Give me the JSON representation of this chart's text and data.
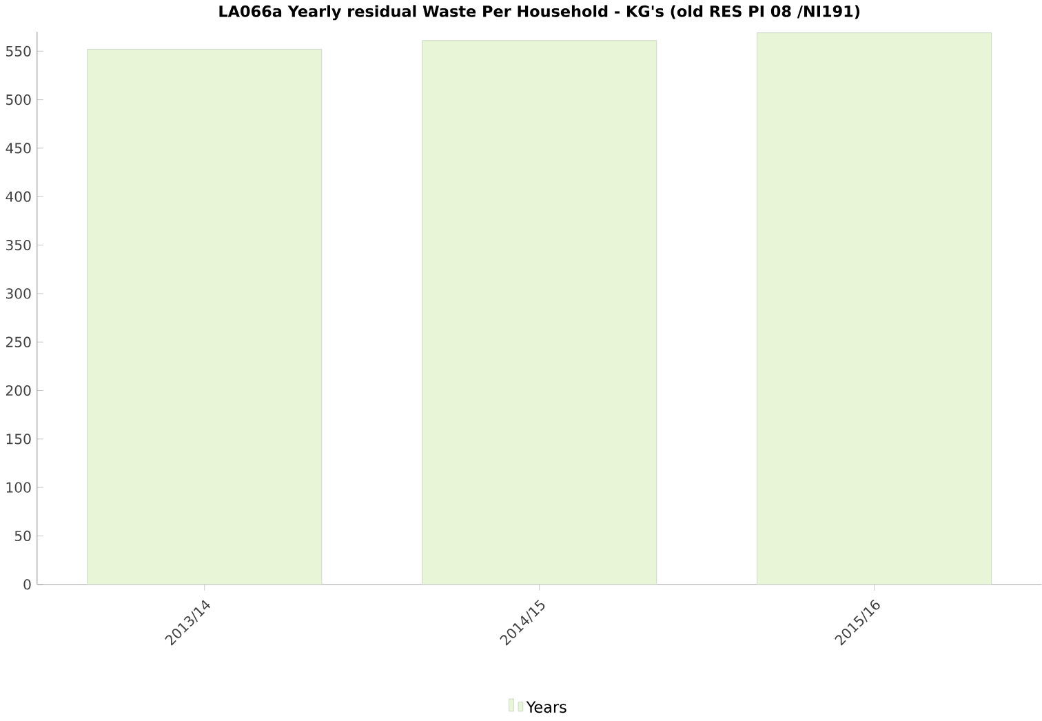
{
  "chart_data": {
    "type": "bar",
    "title": "LA066a Yearly residual Waste Per Household - KG's (old RES PI 08 /NI191)",
    "categories": [
      "2013/14",
      "2014/15",
      "2015/16"
    ],
    "series": [
      {
        "name": "Years",
        "color": "#e8f5d6",
        "values": [
          552,
          561,
          569
        ]
      }
    ],
    "ylim": [
      0,
      570
    ],
    "yticks": [
      0,
      50,
      100,
      150,
      200,
      250,
      300,
      350,
      400,
      450,
      500,
      550
    ],
    "grid": false,
    "legend": "bottom"
  }
}
